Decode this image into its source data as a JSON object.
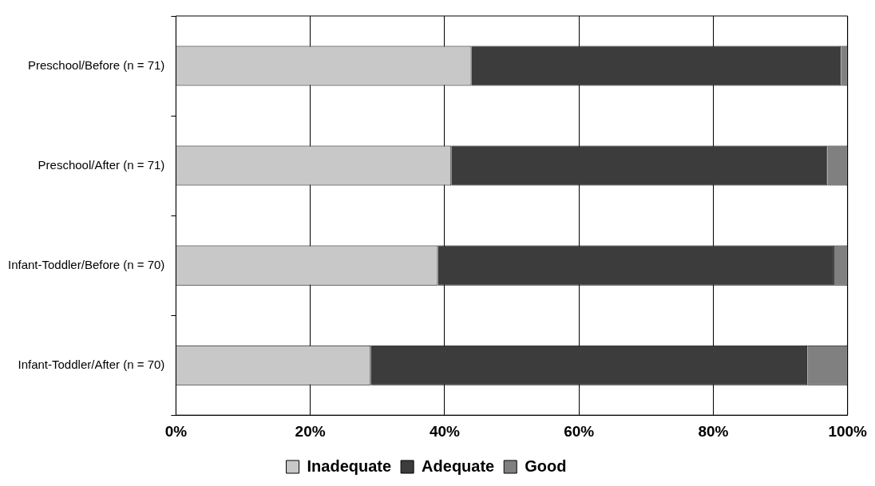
{
  "chart_data": {
    "type": "bar",
    "orientation": "horizontal",
    "stacked": true,
    "categories": [
      "Preschool/Before (n = 71)",
      "Preschool/After (n = 71)",
      "Infant-Toddler/Before (n = 70)",
      "Infant-Toddler/After (n = 70)"
    ],
    "series": [
      {
        "name": "Inadequate",
        "color": "#c8c8c8",
        "values": [
          44,
          41,
          39,
          29
        ]
      },
      {
        "name": "Adequate",
        "color": "#3c3c3c",
        "values": [
          55,
          56,
          59,
          65
        ]
      },
      {
        "name": "Good",
        "color": "#808080",
        "values": [
          1,
          3,
          2,
          6
        ]
      }
    ],
    "xlim": [
      0,
      100
    ],
    "xticks": [
      {
        "value": 0,
        "label": "0%"
      },
      {
        "value": 20,
        "label": "20%"
      },
      {
        "value": 40,
        "label": "40%"
      },
      {
        "value": 60,
        "label": "60%"
      },
      {
        "value": 80,
        "label": "80%"
      },
      {
        "value": 100,
        "label": "100%"
      }
    ],
    "grid": "x",
    "legend": "bottom"
  }
}
